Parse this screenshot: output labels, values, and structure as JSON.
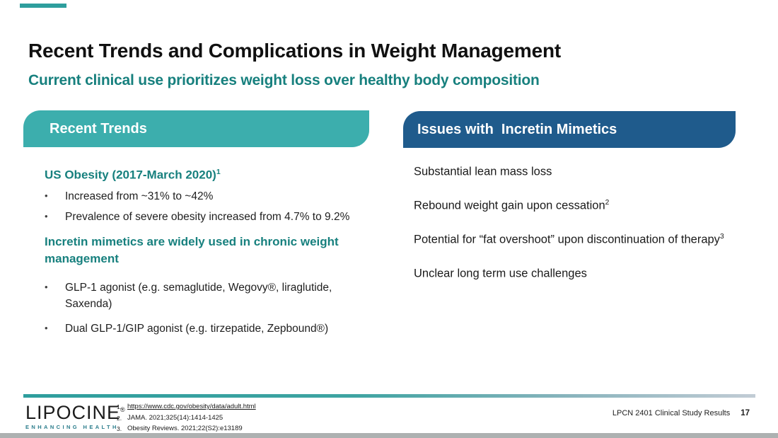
{
  "slide": {
    "title": "Recent Trends and Complications in Weight Management",
    "subtitle": "Current clinical use prioritizes weight loss over healthy body composition",
    "footer_label": "LPCN 2401 Clinical Study Results",
    "page_number": "17",
    "bullet_glyph": "•"
  },
  "colors": {
    "teal_tab": "#3caead",
    "teal_text": "#17807e",
    "navy_tab": "#1f5b8c",
    "accent_dash": "#2e9e9d",
    "footer_gradient_start": "#2e9e9d",
    "footer_gradient_end": "#c2ccd5",
    "bottom_bar": "#adb1b1"
  },
  "left_panel": {
    "header": "Recent Trends",
    "heading1": "US Obesity (2017-March 2020)",
    "heading1_sup": "1",
    "bullets1": [
      "Increased from ~31% to ~42%",
      "Prevalence of severe obesity increased from 4.7% to 9.2%"
    ],
    "heading2": "Incretin mimetics are widely used in chronic weight management",
    "bullets2": [
      "GLP-1 agonist (e.g. semaglutide, Wegovy®, liraglutide, Saxenda)",
      "Dual GLP-1/GIP agonist (e.g. tirzepatide, Zepbound®)"
    ]
  },
  "right_panel": {
    "header": "Issues with  Incretin Mimetics",
    "items": [
      {
        "text": "Substantial lean mass loss",
        "sup": ""
      },
      {
        "text": "Rebound weight gain upon cessation",
        "sup": "2"
      },
      {
        "text": "Potential for “fat overshoot” upon discontinuation of therapy",
        "sup": "3"
      },
      {
        "text": "Unclear long term use challenges",
        "sup": ""
      }
    ]
  },
  "footer": {
    "logo_text": "LIPOCINE",
    "logo_reg": "®",
    "logo_tagline": "ENHANCING HEALTH",
    "notes": [
      {
        "num": "1.",
        "text": "https://www.cdc.gov/obesity/data/adult.html"
      },
      {
        "num": "2.",
        "text": "JAMA. 2021;325(14):1414-1425"
      },
      {
        "num": "3.",
        "text": "Obesity Reviews. 2021;22(S2):e13189"
      }
    ]
  }
}
